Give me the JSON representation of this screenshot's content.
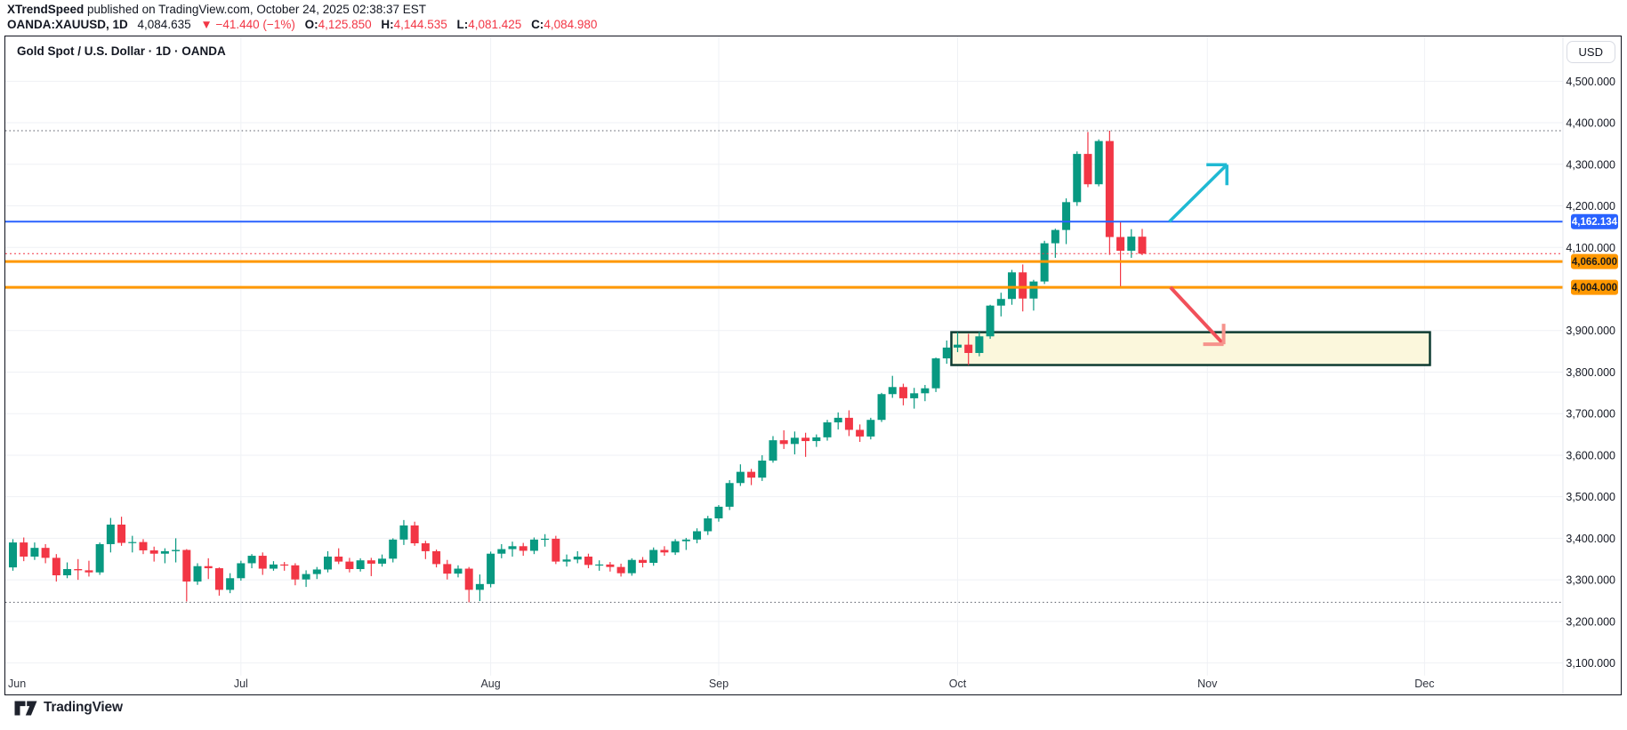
{
  "meta": {
    "byline_author": "XTrendSpeed",
    "byline_rest": " published on TradingView.com, October 24, 2025 02:38:37 EST"
  },
  "symbol_row": {
    "symbol": "OANDA:XAUUSD, 1D",
    "last": "4,084.635",
    "direction_icon": "▼",
    "change": "−41.440 (−1%)",
    "o_label": "O:",
    "o": "4,125.850",
    "h_label": "H:",
    "h": "4,144.535",
    "l_label": "L:",
    "l": "4,081.425",
    "c_label": "C:",
    "c": "4,084.980"
  },
  "chart": {
    "title": "Gold Spot / U.S. Dollar · 1D · OANDA",
    "currency_badge": "USD"
  },
  "logo": {
    "text": "TradingView"
  },
  "chart_data": {
    "type": "candlestick",
    "symbol": "XAUUSD",
    "timeframe": "1D",
    "exchange": "OANDA",
    "colors": {
      "up": "#089981",
      "down": "#F23645",
      "grid": "#eff1f5"
    },
    "y_axis": {
      "min": 3100,
      "max": 4500,
      "tick_step": 100
    },
    "y_ticks": [
      {
        "price": 4500,
        "label": "4,500.000"
      },
      {
        "price": 4400,
        "label": "4,400.000"
      },
      {
        "price": 4300,
        "label": "4,300.000"
      },
      {
        "price": 4200,
        "label": "4,200.000"
      },
      {
        "price": 4100,
        "label": "4,100.000"
      },
      {
        "price": 4000,
        "label": ""
      },
      {
        "price": 3900,
        "label": "3,900.000"
      },
      {
        "price": 3800,
        "label": "3,800.000"
      },
      {
        "price": 3700,
        "label": "3,700.000"
      },
      {
        "price": 3600,
        "label": "3,600.000"
      },
      {
        "price": 3500,
        "label": "3,500.000"
      },
      {
        "price": 3400,
        "label": "3,400.000"
      },
      {
        "price": 3300,
        "label": "3,300.000"
      },
      {
        "price": 3200,
        "label": "3,200.000"
      },
      {
        "price": 3100,
        "label": "3,100.000"
      }
    ],
    "months": [
      {
        "label": "Jun",
        "index": 0
      },
      {
        "label": "Jul",
        "index": 21
      },
      {
        "label": "Aug",
        "index": 44
      },
      {
        "label": "Sep",
        "index": 65
      },
      {
        "label": "Oct",
        "index": 87
      },
      {
        "label": "Nov",
        "index": 110
      },
      {
        "label": "Dec",
        "index": 130
      }
    ],
    "candle_columns": [
      "date",
      "open",
      "high",
      "low",
      "close"
    ],
    "candles": [
      [
        "Jun 2",
        3330,
        3398,
        3322,
        3390
      ],
      [
        "Jun 3",
        3390,
        3402,
        3345,
        3356
      ],
      [
        "Jun 4",
        3356,
        3390,
        3348,
        3377
      ],
      [
        "Jun 5",
        3377,
        3386,
        3340,
        3353
      ],
      [
        "Jun 6",
        3353,
        3362,
        3296,
        3311
      ],
      [
        "Jun 9",
        3311,
        3342,
        3304,
        3326
      ],
      [
        "Jun 10",
        3326,
        3350,
        3300,
        3323
      ],
      [
        "Jun 11",
        3323,
        3346,
        3308,
        3318
      ],
      [
        "Jun 12",
        3318,
        3390,
        3312,
        3386
      ],
      [
        "Jun 13",
        3386,
        3449,
        3366,
        3433
      ],
      [
        "Jun 16",
        3433,
        3452,
        3382,
        3389
      ],
      [
        "Jun 17",
        3389,
        3406,
        3366,
        3391
      ],
      [
        "Jun 18",
        3391,
        3398,
        3362,
        3371
      ],
      [
        "Jun 19",
        3371,
        3380,
        3344,
        3363
      ],
      [
        "Jun 20",
        3363,
        3376,
        3340,
        3369
      ],
      [
        "Jun 23",
        3369,
        3400,
        3342,
        3372
      ],
      [
        "Jun 24",
        3372,
        3374,
        3248,
        3296
      ],
      [
        "Jun 25",
        3296,
        3340,
        3288,
        3333
      ],
      [
        "Jun 26",
        3333,
        3352,
        3302,
        3328
      ],
      [
        "Jun 27",
        3328,
        3330,
        3262,
        3276
      ],
      [
        "Jun 30",
        3276,
        3316,
        3268,
        3304
      ],
      [
        "Jul 1",
        3304,
        3346,
        3298,
        3340
      ],
      [
        "Jul 2",
        3340,
        3362,
        3328,
        3358
      ],
      [
        "Jul 3",
        3358,
        3366,
        3312,
        3327
      ],
      [
        "Jul 4",
        3327,
        3345,
        3322,
        3337
      ],
      [
        "Jul 7",
        3337,
        3343,
        3322,
        3335
      ],
      [
        "Jul 8",
        3335,
        3340,
        3287,
        3301
      ],
      [
        "Jul 9",
        3301,
        3323,
        3283,
        3314
      ],
      [
        "Jul 10",
        3314,
        3331,
        3302,
        3325
      ],
      [
        "Jul 11",
        3325,
        3369,
        3318,
        3356
      ],
      [
        "Jul 14",
        3356,
        3376,
        3338,
        3344
      ],
      [
        "Jul 15",
        3344,
        3353,
        3318,
        3326
      ],
      [
        "Jul 16",
        3326,
        3352,
        3320,
        3347
      ],
      [
        "Jul 17",
        3347,
        3353,
        3309,
        3339
      ],
      [
        "Jul 18",
        3339,
        3361,
        3332,
        3351
      ],
      [
        "Jul 21",
        3351,
        3400,
        3342,
        3397
      ],
      [
        "Jul 22",
        3397,
        3444,
        3384,
        3431
      ],
      [
        "Jul 23",
        3431,
        3440,
        3382,
        3388
      ],
      [
        "Jul 24",
        3388,
        3394,
        3350,
        3369
      ],
      [
        "Jul 25",
        3369,
        3373,
        3330,
        3338
      ],
      [
        "Jul 28",
        3338,
        3348,
        3301,
        3315
      ],
      [
        "Jul 29",
        3315,
        3335,
        3306,
        3327
      ],
      [
        "Jul 30",
        3327,
        3331,
        3246,
        3276
      ],
      [
        "Jul 31",
        3276,
        3313,
        3249,
        3290
      ],
      [
        "Aug 1",
        3290,
        3368,
        3282,
        3363
      ],
      [
        "Aug 4",
        3363,
        3386,
        3352,
        3374
      ],
      [
        "Aug 5",
        3374,
        3392,
        3356,
        3381
      ],
      [
        "Aug 6",
        3381,
        3389,
        3358,
        3370
      ],
      [
        "Aug 7",
        3370,
        3402,
        3362,
        3397
      ],
      [
        "Aug 8",
        3397,
        3410,
        3380,
        3399
      ],
      [
        "Aug 11",
        3399,
        3406,
        3338,
        3344
      ],
      [
        "Aug 12",
        3344,
        3361,
        3332,
        3349
      ],
      [
        "Aug 13",
        3349,
        3369,
        3340,
        3356
      ],
      [
        "Aug 14",
        3356,
        3363,
        3328,
        3336
      ],
      [
        "Aug 15",
        3336,
        3347,
        3322,
        3337
      ],
      [
        "Aug 18",
        3337,
        3343,
        3320,
        3331
      ],
      [
        "Aug 19",
        3331,
        3339,
        3308,
        3316
      ],
      [
        "Aug 20",
        3316,
        3352,
        3310,
        3348
      ],
      [
        "Aug 21",
        3348,
        3355,
        3330,
        3341
      ],
      [
        "Aug 22",
        3341,
        3378,
        3334,
        3372
      ],
      [
        "Aug 25",
        3372,
        3381,
        3358,
        3366
      ],
      [
        "Aug 26",
        3366,
        3398,
        3360,
        3393
      ],
      [
        "Aug 27",
        3393,
        3401,
        3372,
        3397
      ],
      [
        "Aug 28",
        3397,
        3424,
        3388,
        3417
      ],
      [
        "Aug 29",
        3417,
        3454,
        3408,
        3448
      ],
      [
        "Sep 1",
        3448,
        3480,
        3440,
        3476
      ],
      [
        "Sep 2",
        3476,
        3540,
        3468,
        3533
      ],
      [
        "Sep 3",
        3533,
        3578,
        3526,
        3560
      ],
      [
        "Sep 4",
        3560,
        3567,
        3528,
        3546
      ],
      [
        "Sep 5",
        3546,
        3600,
        3538,
        3587
      ],
      [
        "Sep 8",
        3587,
        3646,
        3582,
        3636
      ],
      [
        "Sep 9",
        3636,
        3660,
        3615,
        3627
      ],
      [
        "Sep 10",
        3627,
        3657,
        3602,
        3642
      ],
      [
        "Sep 11",
        3642,
        3654,
        3596,
        3634
      ],
      [
        "Sep 12",
        3634,
        3650,
        3620,
        3643
      ],
      [
        "Sep 15",
        3643,
        3685,
        3635,
        3679
      ],
      [
        "Sep 16",
        3679,
        3703,
        3662,
        3690
      ],
      [
        "Sep 17",
        3690,
        3708,
        3646,
        3661
      ],
      [
        "Sep 18",
        3661,
        3674,
        3632,
        3645
      ],
      [
        "Sep 19",
        3645,
        3690,
        3638,
        3685
      ],
      [
        "Sep 22",
        3685,
        3750,
        3680,
        3747
      ],
      [
        "Sep 23",
        3747,
        3791,
        3738,
        3764
      ],
      [
        "Sep 24",
        3764,
        3772,
        3720,
        3737
      ],
      [
        "Sep 25",
        3737,
        3762,
        3712,
        3749
      ],
      [
        "Sep 26",
        3749,
        3769,
        3730,
        3761
      ],
      [
        "Sep 29",
        3761,
        3835,
        3752,
        3833
      ],
      [
        "Sep 30",
        3833,
        3876,
        3820,
        3859
      ],
      [
        "Oct 1",
        3859,
        3896,
        3848,
        3866
      ],
      [
        "Oct 2",
        3866,
        3892,
        3817,
        3846
      ],
      [
        "Oct 3",
        3846,
        3897,
        3838,
        3886
      ],
      [
        "Oct 6",
        3886,
        3962,
        3880,
        3960
      ],
      [
        "Oct 7",
        3960,
        3991,
        3934,
        3976
      ],
      [
        "Oct 8",
        3976,
        4046,
        3962,
        4040
      ],
      [
        "Oct 9",
        4040,
        4059,
        3946,
        3977
      ],
      [
        "Oct 10",
        3977,
        4022,
        3948,
        4018
      ],
      [
        "Oct 13",
        4018,
        4116,
        4012,
        4110
      ],
      [
        "Oct 14",
        4110,
        4145,
        4075,
        4142
      ],
      [
        "Oct 15",
        4142,
        4218,
        4108,
        4209
      ],
      [
        "Oct 16",
        4209,
        4331,
        4200,
        4325
      ],
      [
        "Oct 17",
        4325,
        4378,
        4245,
        4252
      ],
      [
        "Oct 20",
        4252,
        4360,
        4247,
        4356
      ],
      [
        "Oct 21",
        4356,
        4381,
        4082,
        4125
      ],
      [
        "Oct 22",
        4125,
        4161,
        4004,
        4092
      ],
      [
        "Oct 23",
        4092,
        4144,
        4075,
        4126
      ],
      [
        "Oct 24",
        4125.85,
        4144.535,
        4081.425,
        4084.98
      ]
    ],
    "hlines": [
      {
        "price": 4162.134,
        "axis_label": "4,162.134",
        "color": "#2962FF",
        "width": 2,
        "label_bg": "#2962FF",
        "label_fg": "#ffffff"
      },
      {
        "price": 4066,
        "axis_label": "4,066.000",
        "color": "#FF9800",
        "width": 3,
        "label_bg": "#FF9800",
        "label_fg": "#1a1a1a"
      },
      {
        "price": 4004,
        "axis_label": "4,004.000",
        "color": "#FF9800",
        "width": 3,
        "label_bg": "#FF9800",
        "label_fg": "#1a1a1a"
      }
    ],
    "current_price_line": {
      "price": 4084.98,
      "color": "#F23645",
      "style": "dotted"
    },
    "range_marker_lines": [
      {
        "price": 4381,
        "style": "dotted",
        "color": "#565a65"
      },
      {
        "price": 3246,
        "style": "dotted",
        "color": "#565a65"
      }
    ],
    "zone": {
      "top_price": 3896,
      "bottom_price": 3817,
      "from_index": 87,
      "to_index": 130.5,
      "fill_color": "#FBF7DC",
      "border_color": "#0d3b31"
    },
    "arrows": [
      {
        "direction": "up",
        "shaft_color": "#1FB9D3",
        "head_color": "#1FB9D3",
        "from": {
          "index": 106.5,
          "price": 4162
        },
        "to": {
          "index": 111.8,
          "price": 4299
        }
      },
      {
        "direction": "down",
        "shaft_color": "#F1505A",
        "head_color": "#F6938C",
        "from": {
          "index": 106.6,
          "price": 4004
        },
        "to": {
          "index": 111.5,
          "price": 3867
        }
      }
    ]
  }
}
